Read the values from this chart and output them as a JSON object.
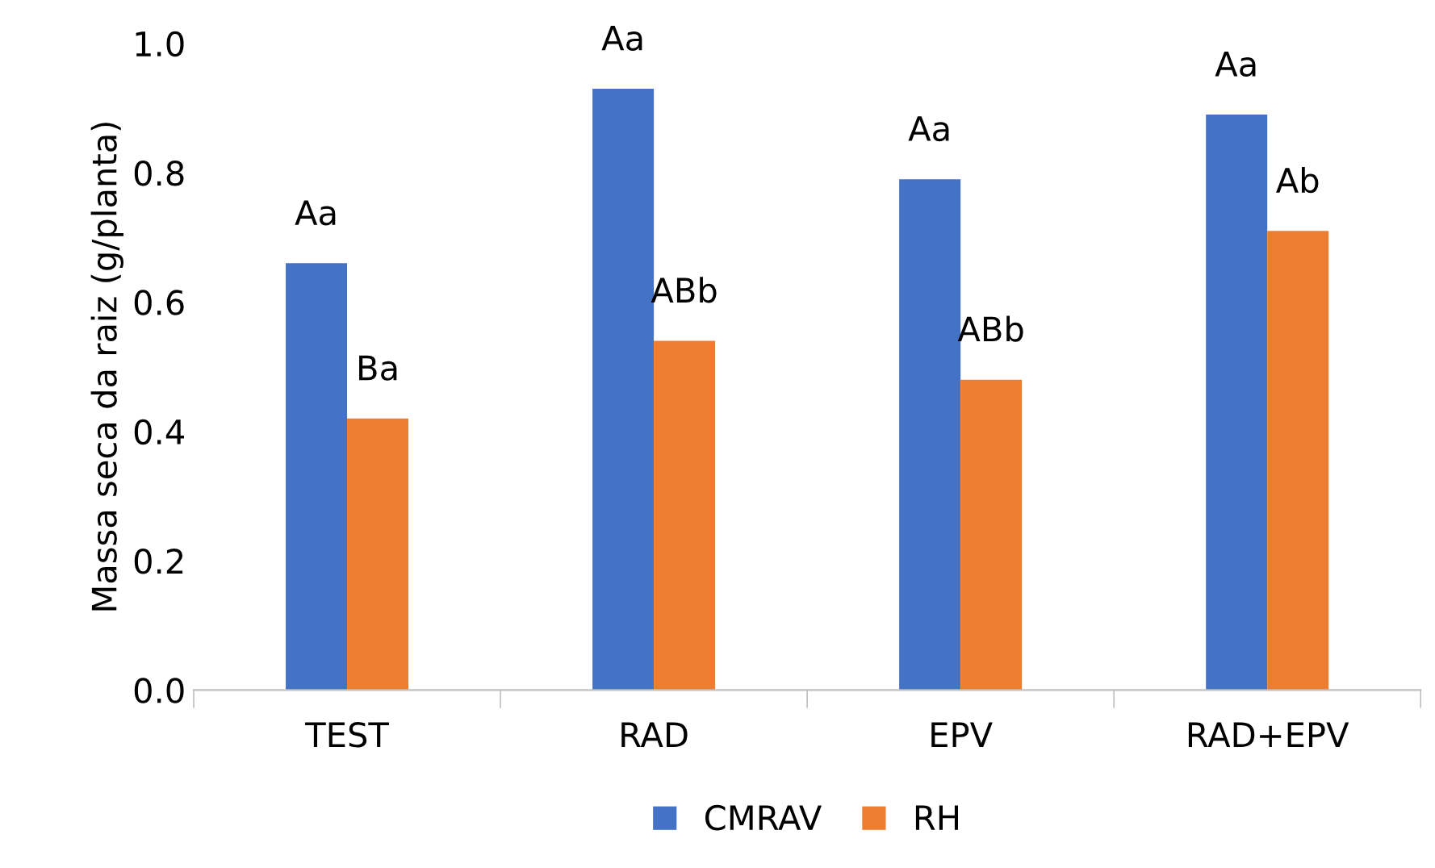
{
  "chart_data": {
    "type": "bar",
    "ylabel": "Massa seca da raiz (g/planta)",
    "categories": [
      "TEST",
      "RAD",
      "EPV",
      "RAD+EPV"
    ],
    "series": [
      {
        "name": "CMRAV",
        "color": "#4472c4",
        "values": [
          0.66,
          0.93,
          0.79,
          0.89
        ],
        "value_labels": [
          "Aa",
          "Aa",
          "Aa",
          "Aa"
        ]
      },
      {
        "name": "RH",
        "color": "#ed7d31",
        "values": [
          0.42,
          0.54,
          0.48,
          0.71
        ],
        "value_labels": [
          "Ba",
          "ABb",
          "ABb",
          "Ab"
        ]
      }
    ],
    "ylim": [
      0,
      1.0
    ],
    "yticks": [
      {
        "value": 0,
        "label": "0.0"
      },
      {
        "value": 0.2,
        "label": "0.2"
      },
      {
        "value": 0.4,
        "label": "0.4"
      },
      {
        "value": 0.6,
        "label": "0.6"
      },
      {
        "value": 0.8,
        "label": "0.8"
      },
      {
        "value": 1.0,
        "label": "1.0"
      }
    ],
    "grid": false,
    "legend": "bottom"
  }
}
